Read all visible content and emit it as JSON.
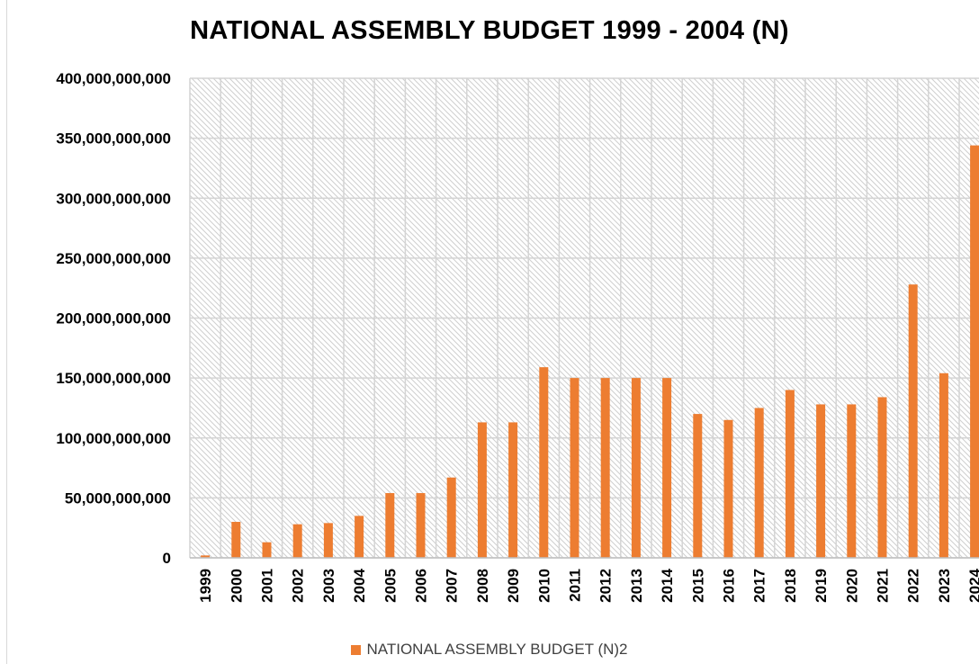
{
  "chart_data": {
    "type": "bar",
    "title": "NATIONAL ASSEMBLY BUDGET 1999 - 2004 (N)",
    "categories": [
      "1999",
      "2000",
      "2001",
      "2002",
      "2003",
      "2004",
      "2005",
      "2006",
      "2007",
      "2008",
      "2009",
      "2010",
      "2011",
      "2012",
      "2013",
      "2014",
      "2015",
      "2016",
      "2017",
      "2018",
      "2019",
      "2020",
      "2021",
      "2022",
      "2023",
      "2024"
    ],
    "series": [
      {
        "name": "NATIONAL ASSEMBLY BUDGET (N)2",
        "color": "#ed7d31",
        "values": [
          2000000000,
          30000000000,
          13000000000,
          28000000000,
          29000000000,
          35000000000,
          54000000000,
          54000000000,
          67000000000,
          113000000000,
          113000000000,
          159000000000,
          150000000000,
          150000000000,
          150000000000,
          150000000000,
          120000000000,
          115000000000,
          125000000000,
          140000000000,
          128000000000,
          128000000000,
          134000000000,
          228000000000,
          154000000000,
          344000000000
        ]
      }
    ],
    "yticks": [
      "0",
      "50,000,000,000",
      "100,000,000,000",
      "150,000,000,000",
      "200,000,000,000",
      "250,000,000,000",
      "300,000,000,000",
      "350,000,000,000",
      "400,000,000,000"
    ],
    "ylim": [
      0,
      400000000000
    ],
    "xlabel": "",
    "ylabel": "",
    "grid": true,
    "legend_position": "bottom"
  }
}
